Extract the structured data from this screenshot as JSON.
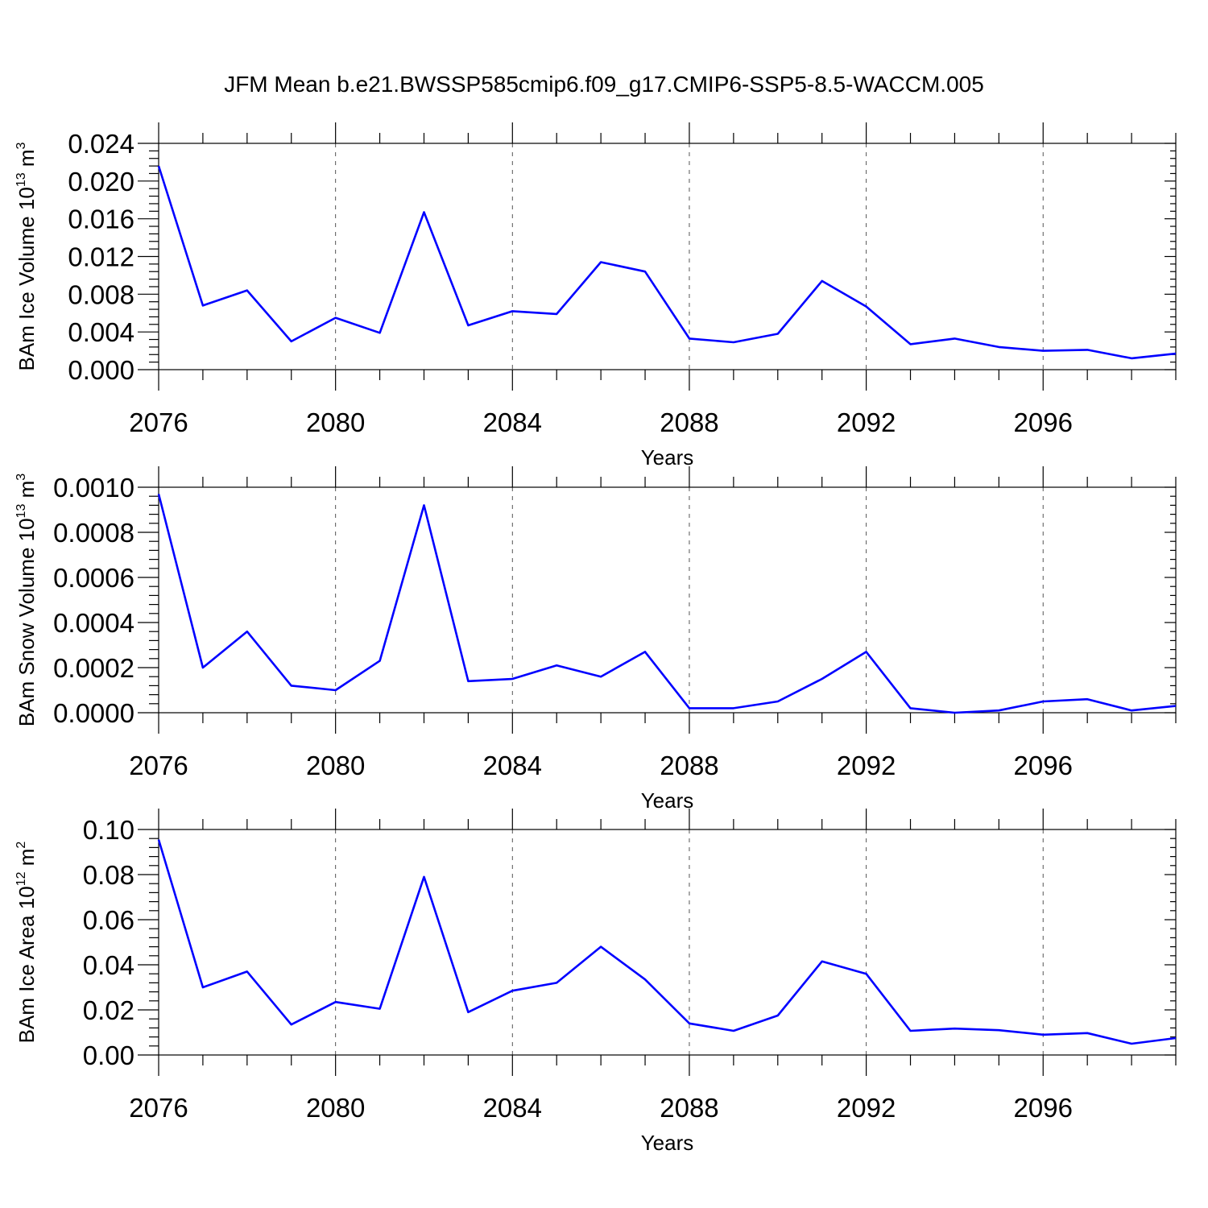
{
  "title": "JFM Mean b.e21.BWSSP585cmip6.f09_g17.CMIP6-SSP5-8.5-WACCM.005",
  "colors": {
    "line": "#0000ff",
    "axis": "#000000",
    "grid": "#555555"
  },
  "chart_data": [
    {
      "type": "line",
      "ylabel": "BAm Ice Volume 10",
      "ylabel_exp": "13",
      "ylabel_unit": " m",
      "ylabel_unit_exp": "3",
      "xlabel": "Years",
      "xlim": [
        2076,
        2099
      ],
      "ylim": [
        0.0,
        0.024
      ],
      "yticks": [
        0.0,
        0.004,
        0.008,
        0.012,
        0.016,
        0.02,
        0.024
      ],
      "ytick_labels": [
        "0.000",
        "0.004",
        "0.008",
        "0.012",
        "0.016",
        "0.020",
        "0.024"
      ],
      "xticks": [
        2076,
        2080,
        2084,
        2088,
        2092,
        2096
      ],
      "xtick_labels": [
        "2076",
        "2080",
        "2084",
        "2088",
        "2092",
        "2096"
      ],
      "x": [
        2076,
        2077,
        2078,
        2079,
        2080,
        2081,
        2082,
        2083,
        2084,
        2085,
        2086,
        2087,
        2088,
        2089,
        2090,
        2091,
        2092,
        2093,
        2094,
        2095,
        2096,
        2097,
        2098,
        2099
      ],
      "values": [
        0.0216,
        0.0068,
        0.0084,
        0.003,
        0.0055,
        0.0039,
        0.0167,
        0.0047,
        0.0062,
        0.0059,
        0.0114,
        0.0104,
        0.0033,
        0.0029,
        0.0038,
        0.0094,
        0.0067,
        0.0027,
        0.0033,
        0.0024,
        0.002,
        0.0021,
        0.0012,
        0.0017
      ]
    },
    {
      "type": "line",
      "ylabel": "BAm Snow Volume 10",
      "ylabel_exp": "13",
      "ylabel_unit": " m",
      "ylabel_unit_exp": "3",
      "xlabel": "Years",
      "xlim": [
        2076,
        2099
      ],
      "ylim": [
        0.0,
        0.001
      ],
      "yticks": [
        0.0,
        0.0002,
        0.0004,
        0.0006,
        0.0008,
        0.001
      ],
      "ytick_labels": [
        "0.0000",
        "0.0002",
        "0.0004",
        "0.0006",
        "0.0008",
        "0.0010"
      ],
      "xticks": [
        2076,
        2080,
        2084,
        2088,
        2092,
        2096
      ],
      "xtick_labels": [
        "2076",
        "2080",
        "2084",
        "2088",
        "2092",
        "2096"
      ],
      "x": [
        2076,
        2077,
        2078,
        2079,
        2080,
        2081,
        2082,
        2083,
        2084,
        2085,
        2086,
        2087,
        2088,
        2089,
        2090,
        2091,
        2092,
        2093,
        2094,
        2095,
        2096,
        2097,
        2098,
        2099
      ],
      "values": [
        0.00097,
        0.0002,
        0.00036,
        0.00012,
        0.0001,
        0.00023,
        0.00092,
        0.00014,
        0.00015,
        0.00021,
        0.00016,
        0.00027,
        2e-05,
        2e-05,
        5e-05,
        0.00015,
        0.00027,
        2e-05,
        0.0,
        1e-05,
        5e-05,
        6e-05,
        1e-05,
        3e-05
      ]
    },
    {
      "type": "line",
      "ylabel": "BAm Ice Area 10",
      "ylabel_exp": "12",
      "ylabel_unit": " m",
      "ylabel_unit_exp": "2",
      "xlabel": "Years",
      "xlim": [
        2076,
        2099
      ],
      "ylim": [
        0.0,
        0.1
      ],
      "yticks": [
        0.0,
        0.02,
        0.04,
        0.06,
        0.08,
        0.1
      ],
      "ytick_labels": [
        "0.00",
        "0.02",
        "0.04",
        "0.06",
        "0.08",
        "0.10"
      ],
      "xticks": [
        2076,
        2080,
        2084,
        2088,
        2092,
        2096
      ],
      "xtick_labels": [
        "2076",
        "2080",
        "2084",
        "2088",
        "2092",
        "2096"
      ],
      "x": [
        2076,
        2077,
        2078,
        2079,
        2080,
        2081,
        2082,
        2083,
        2084,
        2085,
        2086,
        2087,
        2088,
        2089,
        2090,
        2091,
        2092,
        2093,
        2094,
        2095,
        2096,
        2097,
        2098,
        2099
      ],
      "values": [
        0.0955,
        0.03,
        0.037,
        0.0135,
        0.0235,
        0.0205,
        0.079,
        0.019,
        0.0285,
        0.032,
        0.048,
        0.0335,
        0.014,
        0.0107,
        0.0175,
        0.0415,
        0.036,
        0.0107,
        0.0117,
        0.011,
        0.009,
        0.0097,
        0.005,
        0.0075
      ]
    }
  ]
}
